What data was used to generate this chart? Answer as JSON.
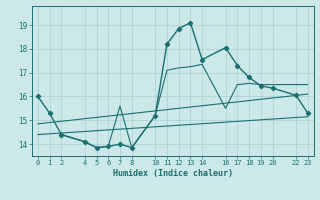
{
  "xlabel": "Humidex (Indice chaleur)",
  "bg_color": "#cce8e8",
  "grid_major_color": "#aacfcf",
  "grid_minor_color": "#bbdada",
  "line_color": "#1a7070",
  "xlim": [
    -0.5,
    23.5
  ],
  "ylim": [
    13.5,
    19.8
  ],
  "xticks": [
    0,
    1,
    2,
    4,
    5,
    6,
    7,
    8,
    10,
    11,
    12,
    13,
    14,
    16,
    17,
    18,
    19,
    20,
    22,
    23
  ],
  "yticks": [
    14,
    15,
    16,
    17,
    18,
    19
  ],
  "line_main": {
    "x": [
      0,
      1,
      2,
      4,
      5,
      6,
      7,
      8,
      10,
      11,
      12,
      13,
      14,
      16,
      17,
      18,
      19,
      20,
      22,
      23
    ],
    "y": [
      16.0,
      15.3,
      14.4,
      14.1,
      13.85,
      13.9,
      14.0,
      13.85,
      15.2,
      18.2,
      18.85,
      19.1,
      17.55,
      18.05,
      17.3,
      16.8,
      16.45,
      16.35,
      16.05,
      15.3
    ]
  },
  "line_upper": {
    "x": [
      0,
      23
    ],
    "y": [
      14.85,
      16.1
    ]
  },
  "line_lower": {
    "x": [
      0,
      23
    ],
    "y": [
      14.4,
      15.15
    ]
  },
  "line_extra": {
    "x": [
      2,
      4,
      5,
      6,
      7,
      8,
      10,
      11,
      12,
      13,
      14,
      16,
      17,
      18,
      19,
      20,
      22,
      23
    ],
    "y": [
      14.4,
      14.1,
      13.85,
      13.9,
      15.6,
      13.85,
      15.2,
      17.1,
      17.2,
      17.25,
      17.35,
      15.5,
      16.5,
      16.55,
      16.5,
      16.5,
      16.5,
      16.5
    ]
  }
}
